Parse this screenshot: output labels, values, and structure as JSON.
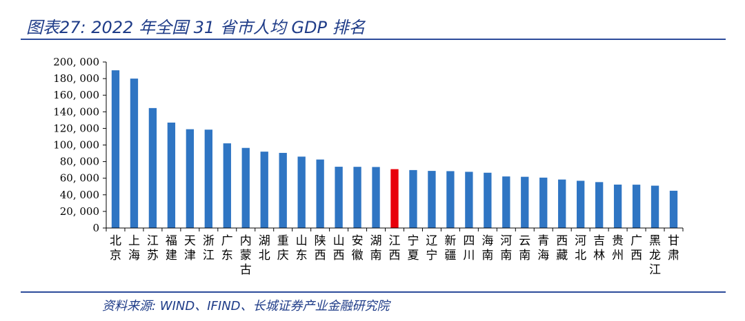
{
  "header": {
    "title": "图表27: 2022 年全国 31 省市人均 GDP 排名"
  },
  "footer": {
    "source": "资料来源: WIND、IFIND、长城证券产业金融研究院"
  },
  "colors": {
    "bar": "#2f75c3",
    "highlight": "#e8000b",
    "axis": "#000000",
    "text_blue": "#1f3c88"
  },
  "chart_data": {
    "type": "bar",
    "title": "",
    "xlabel": "",
    "ylabel": "",
    "ylim": [
      0,
      200000
    ],
    "yticks": [
      0,
      20000,
      40000,
      60000,
      80000,
      100000,
      120000,
      140000,
      160000,
      180000,
      200000
    ],
    "ytick_labels": [
      "0",
      "20, 000",
      "40, 000",
      "60, 000",
      "80, 000",
      "100, 000",
      "120, 000",
      "140, 000",
      "160, 000",
      "180, 000",
      "200, 000"
    ],
    "grid": false,
    "categories": [
      "北京",
      "上海",
      "江苏",
      "福建",
      "天津",
      "浙江",
      "广东",
      "内蒙古",
      "湖北",
      "重庆",
      "山东",
      "陕西",
      "山西",
      "安徽",
      "湖南",
      "江西",
      "宁夏",
      "辽宁",
      "新疆",
      "四川",
      "海南",
      "河南",
      "云南",
      "青海",
      "西藏",
      "河北",
      "吉林",
      "贵州",
      "广西",
      "黑龙江",
      "甘肃"
    ],
    "values": [
      190000,
      180000,
      144500,
      127000,
      119000,
      118500,
      102000,
      96500,
      92000,
      90500,
      86000,
      82500,
      73800,
      73700,
      73500,
      70900,
      69800,
      68800,
      68500,
      67700,
      66600,
      62100,
      61700,
      60700,
      58400,
      56900,
      55300,
      52300,
      52200,
      51000,
      44900
    ],
    "highlight_category": "江西"
  }
}
